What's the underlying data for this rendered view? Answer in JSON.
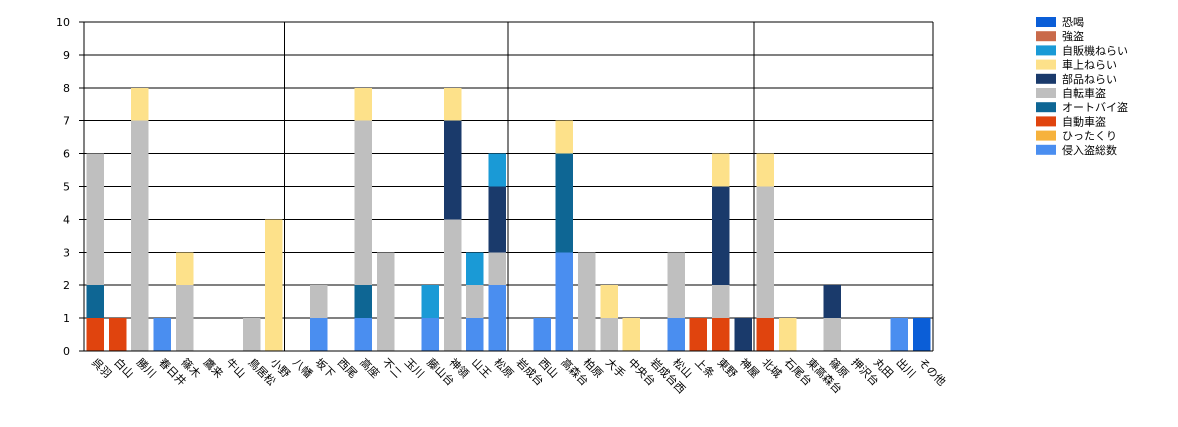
{
  "chart_data": {
    "type": "bar",
    "stacked": true,
    "ylim": [
      0,
      10
    ],
    "yticks": [
      "0",
      "1",
      "2",
      "3",
      "4",
      "5",
      "6",
      "7",
      "8",
      "9",
      "10"
    ],
    "grid": true,
    "legend_position": "top-right",
    "categories": [
      "呉羽",
      "白山",
      "勝川",
      "春日井",
      "篠木",
      "鷹来",
      "牛山",
      "鳥居松",
      "小野",
      "八幡",
      "坂下",
      "西尾",
      "高座",
      "不二",
      "玉川",
      "藤山台",
      "神領",
      "山王",
      "松原",
      "岩成台",
      "西山",
      "高森台",
      "柏原",
      "大手",
      "中央台",
      "岩成台西",
      "松山",
      "上条",
      "東野",
      "神屋",
      "北城",
      "石尾台",
      "東高森台",
      "篠原",
      "押沢台",
      "丸田",
      "出川",
      "その他"
    ],
    "dividers_after": [
      "小野",
      "松原",
      "神屋"
    ],
    "series": [
      {
        "name": "侵入盗総数",
        "color": "#4a8ef0",
        "values": [
          0,
          0,
          0,
          1,
          0,
          0,
          0,
          0,
          0,
          0,
          1,
          0,
          1,
          0,
          0,
          1,
          0,
          1,
          2,
          0,
          1,
          3,
          0,
          0,
          0,
          0,
          1,
          0,
          0,
          0,
          0,
          0,
          0,
          0,
          0,
          0,
          1,
          0
        ]
      },
      {
        "name": "ひったくり",
        "color": "#f6b23c",
        "values": [
          0,
          0,
          0,
          0,
          0,
          0,
          0,
          0,
          0,
          0,
          0,
          0,
          0,
          0,
          0,
          0,
          0,
          0,
          0,
          0,
          0,
          0,
          0,
          0,
          0,
          0,
          0,
          0,
          0,
          0,
          0,
          0,
          0,
          0,
          0,
          0,
          0,
          0
        ]
      },
      {
        "name": "自動車盗",
        "color": "#e0440e",
        "values": [
          1,
          1,
          0,
          0,
          0,
          0,
          0,
          0,
          0,
          0,
          0,
          0,
          0,
          0,
          0,
          0,
          0,
          0,
          0,
          0,
          0,
          0,
          0,
          0,
          0,
          0,
          0,
          1,
          1,
          0,
          1,
          0,
          0,
          0,
          0,
          0,
          0,
          0
        ]
      },
      {
        "name": "オートバイ盗",
        "color": "#0e6694",
        "values": [
          1,
          0,
          0,
          0,
          0,
          0,
          0,
          0,
          0,
          0,
          0,
          0,
          1,
          0,
          0,
          0,
          0,
          0,
          0,
          0,
          0,
          3,
          0,
          0,
          0,
          0,
          0,
          0,
          0,
          0,
          0,
          0,
          0,
          0,
          0,
          0,
          0,
          0
        ]
      },
      {
        "name": "自転車盗",
        "color": "#bfbfbf",
        "values": [
          4,
          0,
          7,
          0,
          2,
          0,
          0,
          1,
          0,
          0,
          1,
          0,
          5,
          3,
          0,
          0,
          4,
          1,
          1,
          0,
          0,
          0,
          3,
          1,
          0,
          0,
          2,
          0,
          1,
          0,
          4,
          0,
          0,
          1,
          0,
          0,
          0,
          0
        ]
      },
      {
        "name": "部品ねらい",
        "color": "#1a3a6b",
        "values": [
          0,
          0,
          0,
          0,
          0,
          0,
          0,
          0,
          0,
          0,
          0,
          0,
          0,
          0,
          0,
          0,
          3,
          0,
          2,
          0,
          0,
          0,
          0,
          0,
          0,
          0,
          0,
          0,
          3,
          1,
          0,
          0,
          0,
          1,
          0,
          0,
          0,
          0
        ]
      },
      {
        "name": "車上ねらい",
        "color": "#fde18a",
        "values": [
          0,
          0,
          1,
          0,
          1,
          0,
          0,
          0,
          4,
          0,
          0,
          0,
          1,
          0,
          0,
          0,
          1,
          0,
          0,
          0,
          0,
          1,
          0,
          1,
          1,
          0,
          0,
          0,
          1,
          0,
          1,
          1,
          0,
          0,
          0,
          0,
          0,
          0
        ]
      },
      {
        "name": "自販機ねらい",
        "color": "#1a9ad6",
        "values": [
          0,
          0,
          0,
          0,
          0,
          0,
          0,
          0,
          0,
          0,
          0,
          0,
          0,
          0,
          0,
          1,
          0,
          1,
          1,
          0,
          0,
          0,
          0,
          0,
          0,
          0,
          0,
          0,
          0,
          0,
          0,
          0,
          0,
          0,
          0,
          0,
          0,
          0
        ]
      },
      {
        "name": "強盗",
        "color": "#c96a4a",
        "values": [
          0,
          0,
          0,
          0,
          0,
          0,
          0,
          0,
          0,
          0,
          0,
          0,
          0,
          0,
          0,
          0,
          0,
          0,
          0,
          0,
          0,
          0,
          0,
          0,
          0,
          0,
          0,
          0,
          0,
          0,
          0,
          0,
          0,
          0,
          0,
          0,
          0,
          0
        ]
      },
      {
        "name": "恐喝",
        "color": "#0b5ed7",
        "values": [
          0,
          0,
          0,
          0,
          0,
          0,
          0,
          0,
          0,
          0,
          0,
          0,
          0,
          0,
          0,
          0,
          0,
          0,
          0,
          0,
          0,
          0,
          0,
          0,
          0,
          0,
          0,
          0,
          0,
          0,
          0,
          0,
          0,
          0,
          0,
          0,
          0,
          1
        ]
      }
    ],
    "legend_order": [
      "恐喝",
      "強盗",
      "自販機ねらい",
      "車上ねらい",
      "部品ねらい",
      "自転車盗",
      "オートバイ盗",
      "自動車盗",
      "ひったくり",
      "侵入盗総数"
    ]
  }
}
